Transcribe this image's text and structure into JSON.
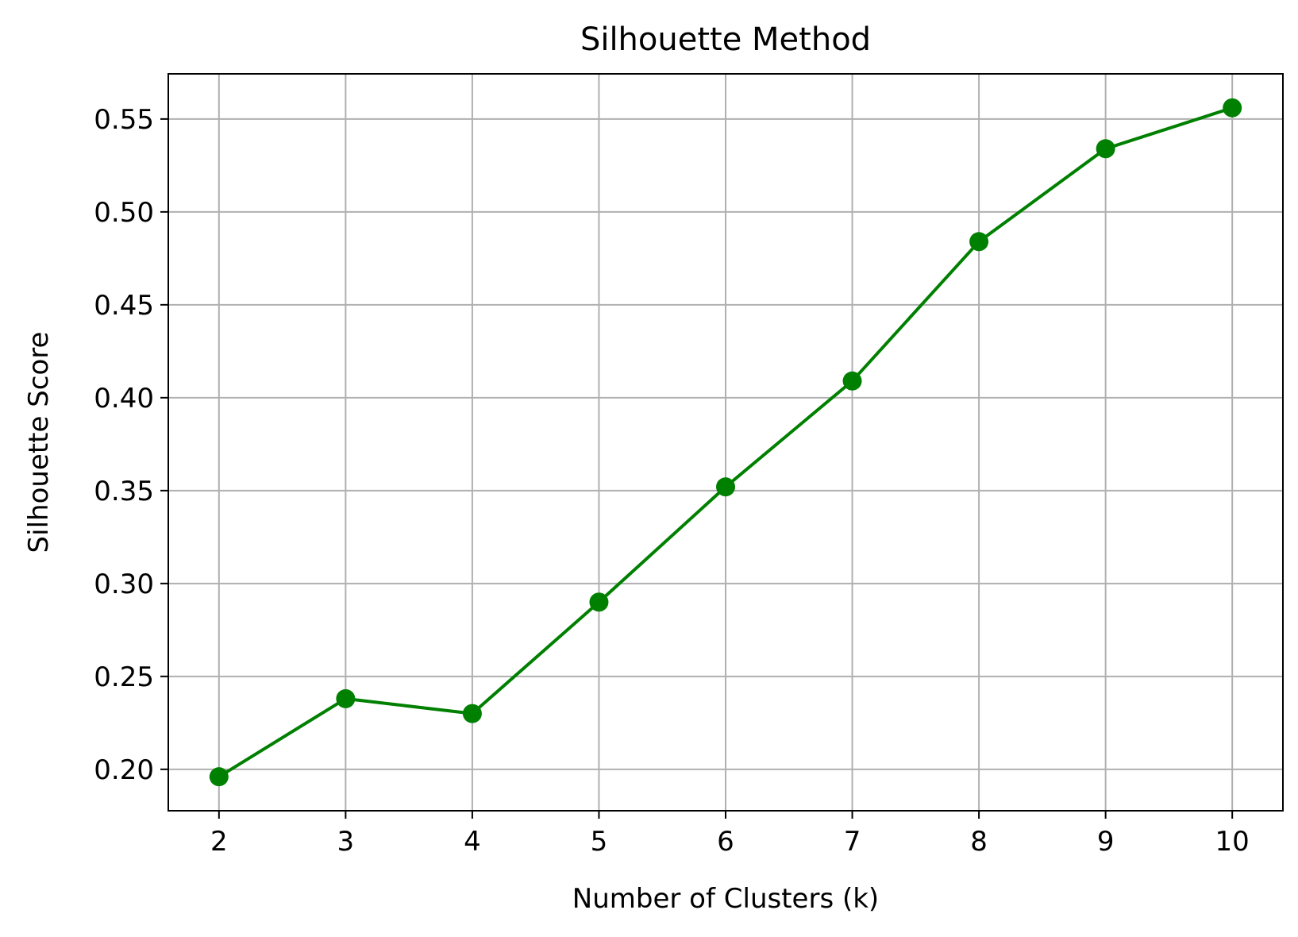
{
  "chart_data": {
    "type": "line",
    "title": "Silhouette Method",
    "xlabel": "Number of Clusters (k)",
    "ylabel": "Silhouette Score",
    "x": [
      2,
      3,
      4,
      5,
      6,
      7,
      8,
      9,
      10
    ],
    "series": [
      {
        "values": [
          0.196,
          0.238,
          0.23,
          0.29,
          0.352,
          0.409,
          0.484,
          0.534,
          0.556
        ],
        "color": "#008000",
        "marker": "circle"
      }
    ],
    "xticks": [
      "2",
      "3",
      "4",
      "5",
      "6",
      "7",
      "8",
      "9",
      "10"
    ],
    "yticks": [
      "0.20",
      "0.25",
      "0.30",
      "0.35",
      "0.40",
      "0.45",
      "0.50",
      "0.55"
    ],
    "xlim": [
      1.6,
      10.4
    ],
    "ylim": [
      0.1777,
      0.5743
    ],
    "grid": true,
    "grid_color": "#b0b0b0"
  }
}
